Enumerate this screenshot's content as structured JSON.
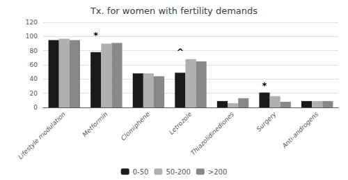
{
  "chart_data": {
    "type": "bar",
    "title": "Tx. for women with fertility demands",
    "categories": [
      "Lifestyle modulation",
      "Metformin",
      "Clomiphene",
      "Letrozole",
      "Thiazolidinediones",
      "Surgery",
      "Anti-androgens"
    ],
    "series": [
      {
        "name": "0-50",
        "color": "#1a1a1a",
        "values": [
          95,
          78,
          48,
          49,
          9,
          21,
          9
        ]
      },
      {
        "name": "50-200",
        "color": "#b0b0b0",
        "values": [
          97,
          90,
          48,
          68,
          6,
          16,
          9
        ]
      },
      {
        "name": ">200",
        "color": "#888888",
        "values": [
          95,
          91,
          44,
          65,
          13,
          8,
          9
        ]
      }
    ],
    "annotations": [
      {
        "text": "*",
        "category": "Metformin"
      },
      {
        "text": "^",
        "category": "Letrozole"
      },
      {
        "text": "*",
        "category": "Surgery"
      }
    ],
    "ylim": [
      0,
      120
    ],
    "yticks": [
      0,
      20,
      40,
      60,
      80,
      100,
      120
    ],
    "grid": true,
    "legend": "bottom"
  }
}
